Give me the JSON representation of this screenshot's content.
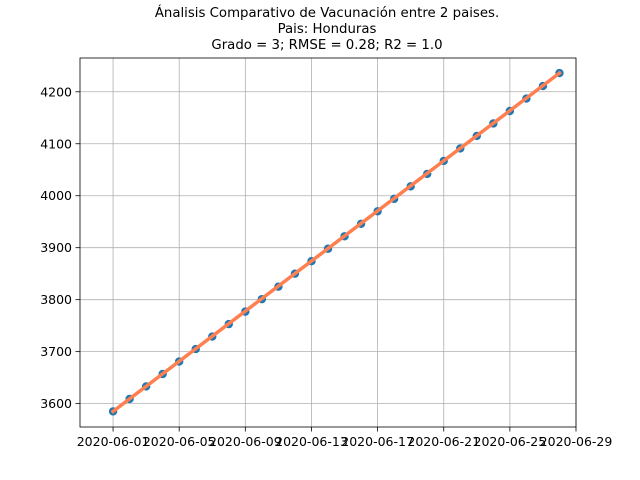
{
  "chart_data": {
    "type": "scatter",
    "title": "Ánalisis Comparativo de Vacunación entre 2 paises.",
    "subtitle": "Pais: Honduras",
    "annotation": "Grado = 3; RMSE = 0.28; R2 = 1.0",
    "xlabel": "",
    "ylabel": "",
    "x_type": "date",
    "xlim": [
      "2020-05-30",
      "2020-06-29"
    ],
    "ylim": [
      3555,
      4265
    ],
    "grid": true,
    "x_ticks": [
      "2020-06-01",
      "2020-06-05",
      "2020-06-09",
      "2020-06-13",
      "2020-06-17",
      "2020-06-21",
      "2020-06-25",
      "2020-06-29"
    ],
    "x_tick_labels": [
      "2020-06-01",
      "2020-06-05",
      "2020-06-09",
      "2020-06-13",
      "2020-06-17",
      "2020-06-21",
      "2020-06-25",
      "2020-06-29"
    ],
    "y_ticks": [
      3600,
      3700,
      3800,
      3900,
      4000,
      4100,
      4200
    ],
    "y_tick_labels": [
      "3600",
      "3700",
      "3800",
      "3900",
      "4000",
      "4100",
      "4200"
    ],
    "series": [
      {
        "kind": "scatter",
        "color": "#1f77b4",
        "x": [
          "2020-06-01",
          "2020-06-02",
          "2020-06-03",
          "2020-06-04",
          "2020-06-05",
          "2020-06-06",
          "2020-06-07",
          "2020-06-08",
          "2020-06-09",
          "2020-06-10",
          "2020-06-11",
          "2020-06-12",
          "2020-06-13",
          "2020-06-14",
          "2020-06-15",
          "2020-06-16",
          "2020-06-17",
          "2020-06-18",
          "2020-06-19",
          "2020-06-20",
          "2020-06-21",
          "2020-06-22",
          "2020-06-23",
          "2020-06-24",
          "2020-06-25",
          "2020-06-26",
          "2020-06-27",
          "2020-06-28"
        ],
        "y": [
          3585,
          3609,
          3633,
          3657,
          3681,
          3705,
          3729,
          3753,
          3777,
          3801,
          3825,
          3850,
          3874,
          3898,
          3922,
          3946,
          3970,
          3994,
          4018,
          4042,
          4067,
          4091,
          4115,
          4139,
          4163,
          4187,
          4211,
          4236
        ]
      },
      {
        "kind": "line",
        "color": "#ff7f50",
        "x": [
          "2020-06-01",
          "2020-06-28"
        ],
        "y": [
          3585,
          4236
        ]
      }
    ]
  }
}
